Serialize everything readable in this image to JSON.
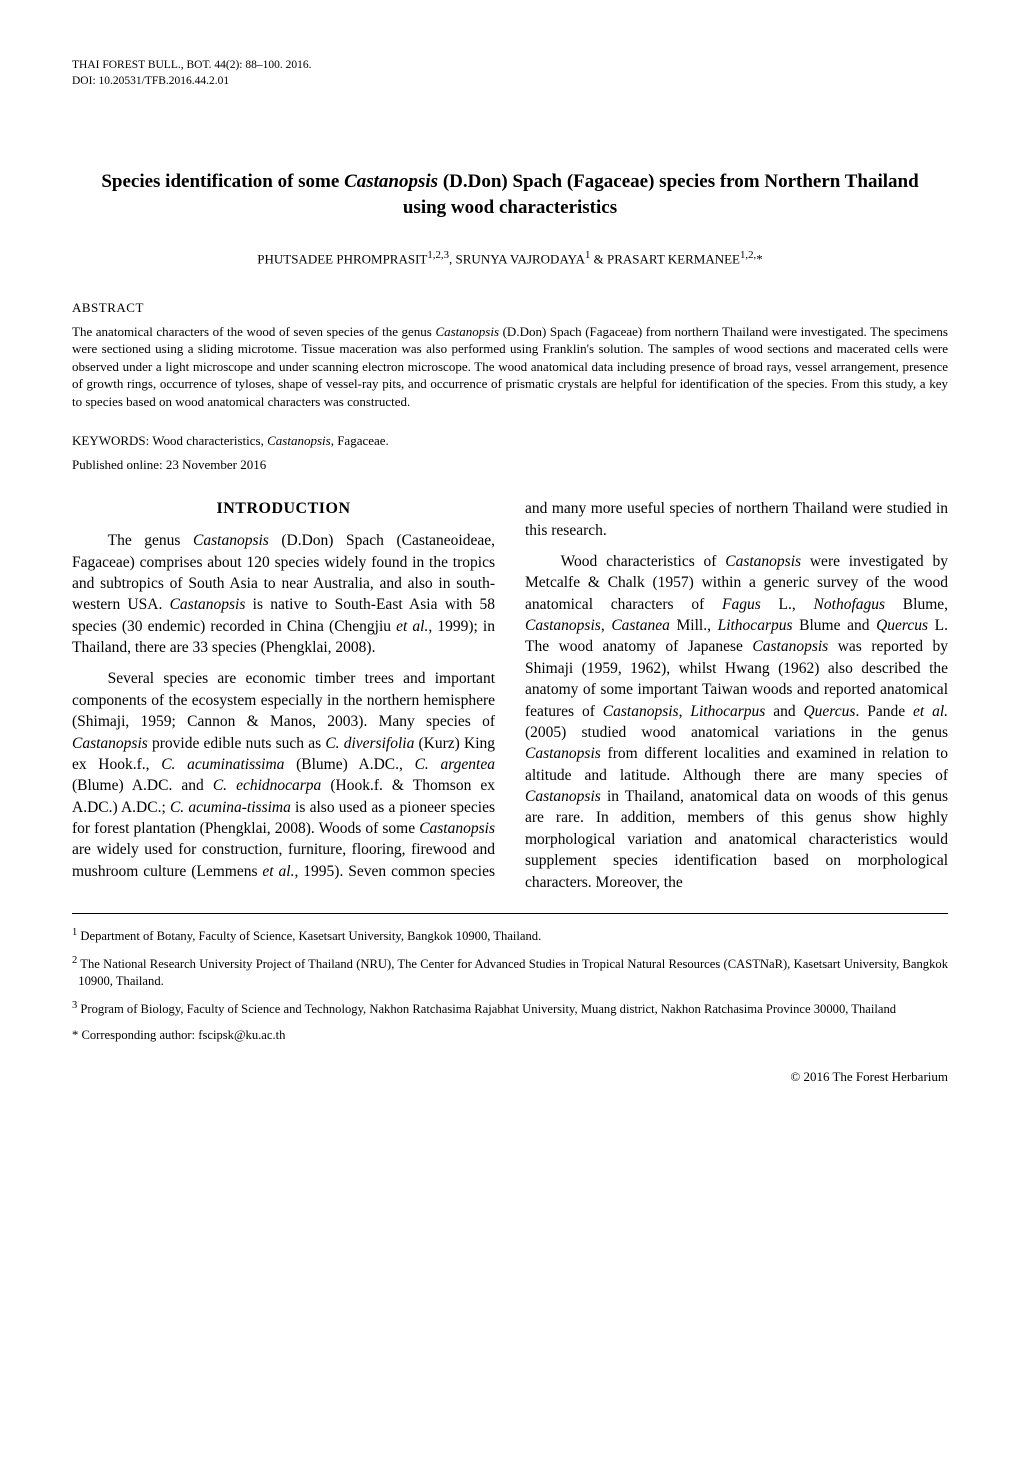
{
  "running_head": {
    "line1": "THAI FOREST BULL., BOT. 44(2): 88–100. 2016.",
    "line2": "DOI: 10.20531/TFB.2016.44.2.01"
  },
  "title_html": "Species identification of some <span class=\"i\">Castanopsis</span> (D.Don) Spach (Fagaceae) species from Northern Thailand using wood characteristics",
  "authors_html": "PHUTSADEE PHROMPRASIT<sup>1,2,3</sup>, SRUNYA VAJRODAYA<sup>1</sup> & PRASART KERMANEE<sup>1,2,</sup>*",
  "abstract": {
    "heading": "ABSTRACT",
    "body_html": "The anatomical characters of the wood of seven species of the genus <span class=\"i\">Castanopsis</span> (D.Don) Spach (Fagaceae) from northern Thailand were investigated. The specimens were sectioned using a sliding microtome. Tissue maceration was also performed using Franklin's solution. The samples of wood sections and macerated cells were observed under a light microscope and under scanning electron microscope. The wood anatomical data including presence of broad rays, vessel arrangement, presence of growth rings, occurrence of tyloses, shape of vessel-ray pits, and occurrence of prismatic crystals are helpful for identification of the species. From this study, a key to species based on wood anatomical characters was constructed."
  },
  "keywords_html": "KEYWORDS: Wood characteristics, <span class=\"i\">Castanopsis</span>, Fagaceae.",
  "published": "Published online: 23 November 2016",
  "section_heading": "INTRODUCTION",
  "body_paragraphs_html": [
    "The genus <span class=\"i\">Castanopsis</span> (D.Don) Spach (Castaneoideae, Fagaceae) comprises about 120 species widely found in the tropics and subtropics of South Asia to near Australia, and also in south-western USA. <span class=\"i\">Castanopsis</span> is native to South-East Asia with 58 species (30 endemic) recorded in China (Chengjiu <span class=\"i\">et al.</span>, 1999); in Thailand, there are 33 species (Phengklai, 2008).",
    "Several species are economic timber trees and important components of the ecosystem especially in the northern hemisphere (Shimaji, 1959; Cannon & Manos, 2003). Many species of <span class=\"i\">Castanopsis</span> provide edible nuts such as <span class=\"i\">C. diversifolia</span> (Kurz) King ex Hook.f., <span class=\"i\">C. acuminatissima</span> (Blume) A.DC., <span class=\"i\">C. argentea</span> (Blume) A.DC. and <span class=\"i\">C. echidnocarpa</span> (Hook.f. & Thomson ex A.DC.) A.DC.; <span class=\"i\">C. acumina-tissima</span> is also used as a pioneer species for forest plantation (Phengklai, 2008). Woods of some <span class=\"i\">Castanopsis</span> are widely used for construction, furniture, flooring, firewood and mushroom culture (Lemmens <span class=\"i\">et al.</span>, 1995). Seven common species and many more useful species of northern Thailand were studied in this research.",
    "Wood characteristics of <span class=\"i\">Castanopsis</span> were investigated by Metcalfe & Chalk (1957) within a generic survey of the wood anatomical characters of <span class=\"i\">Fagus</span> L., <span class=\"i\">Nothofagus</span> Blume, <span class=\"i\">Castanopsis</span>, <span class=\"i\">Castanea</span> Mill., <span class=\"i\">Lithocarpus</span> Blume and <span class=\"i\">Quercus</span> L. The wood anatomy of Japanese <span class=\"i\">Castanopsis</span> was reported by Shimaji (1959, 1962), whilst Hwang (1962) also described the anatomy of some important Taiwan woods and reported anatomical features of <span class=\"i\">Castanopsis</span>, <span class=\"i\">Lithocarpus</span> and <span class=\"i\">Quercus</span>. Pande <span class=\"i\">et al.</span> (2005) studied wood anatomical variations in the genus <span class=\"i\">Castanopsis</span> from different localities and examined in relation to altitude and latitude. Although there are many species of <span class=\"i\">Castanopsis</span> in Thailand, anatomical data on woods of this genus are rare. In addition, members of this genus show highly morphological variation and anatomical characteristics would supplement species identification based on morphological characters. Moreover, the"
  ],
  "footnotes_html": [
    "<sup>1</sup> Department of Botany, Faculty of Science, Kasetsart University, Bangkok 10900, Thailand.",
    "<sup>2</sup> The National Research University Project of Thailand (NRU), The Center for Advanced Studies in Tropical Natural Resources (CASTNaR), Kasetsart University, Bangkok 10900, Thailand.",
    "<sup>3</sup> Program of Biology, Faculty of Science and Technology, Nakhon Ratchasima Rajabhat University, Muang district, Nakhon Ratchasima Province 30000, Thailand",
    "* Corresponding author: fscipsk@ku.ac.th"
  ],
  "footer": "© 2016 The Forest Herbarium"
}
